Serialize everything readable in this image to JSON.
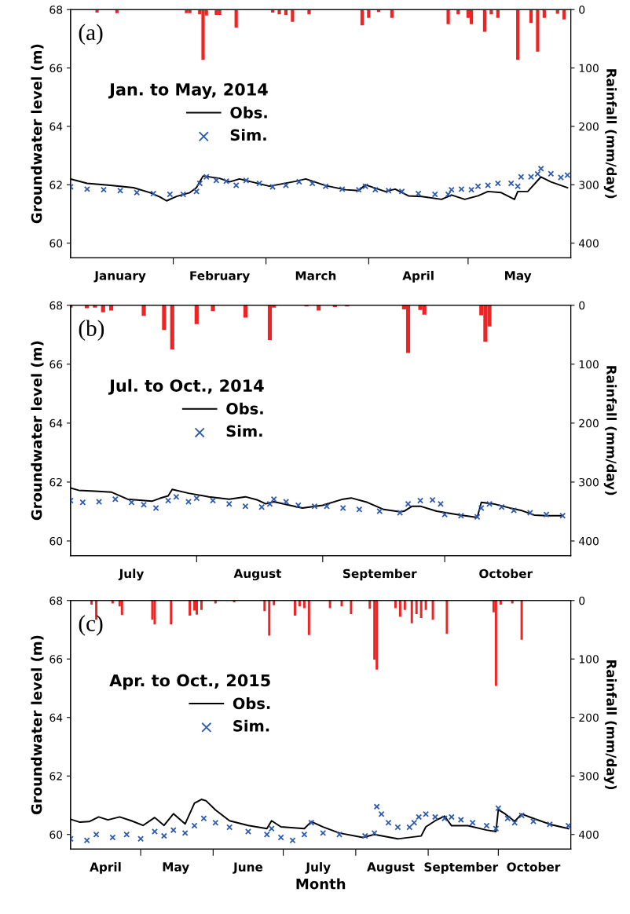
{
  "chart_data": [
    {
      "type": "line",
      "ylabel": "Groundwater level (m)",
      "y2label": "Rainfall (mm/day)",
      "legend_title": "Jan. to May, 2014",
      "legend": "top left",
      "annotations": [
        "(a)"
      ],
      "xlim": [
        "2014-01-01",
        "2014-06-01"
      ],
      "xticks": [
        {
          "value": "2014-02-01",
          "label": null
        },
        {
          "value": "2014-03-01",
          "label": null
        },
        {
          "value": "2014-04-01",
          "label": null
        },
        {
          "value": "2014-05-01",
          "label": null
        },
        {
          "value": "2014-01-16",
          "label": "January"
        },
        {
          "value": "2014-02-15",
          "label": "February"
        },
        {
          "value": "2014-03-16",
          "label": "March"
        },
        {
          "value": "2014-04-16",
          "label": "April"
        },
        {
          "value": "2014-05-16",
          "label": "May"
        }
      ],
      "ylim": [
        59.5,
        68
      ],
      "yticks": [
        60,
        62,
        64,
        66,
        68
      ],
      "y2lim": [
        425,
        0
      ],
      "y2ticks": [
        0,
        100,
        200,
        300,
        400
      ],
      "series": [
        {
          "type": "bar",
          "axis": "y2",
          "color": "#ee2424",
          "x": [
            "2014-01-09",
            "2014-01-15",
            "2014-02-05",
            "2014-02-06",
            "2014-02-09",
            "2014-02-10",
            "2014-02-11",
            "2014-02-14",
            "2014-02-15",
            "2014-02-20",
            "2014-03-03",
            "2014-03-05",
            "2014-03-07",
            "2014-03-09",
            "2014-03-14",
            "2014-03-30",
            "2014-04-01",
            "2014-04-04",
            "2014-04-08",
            "2014-04-25",
            "2014-04-28",
            "2014-05-01",
            "2014-05-02",
            "2014-05-06",
            "2014-05-08",
            "2014-05-10",
            "2014-05-16",
            "2014-05-20",
            "2014-05-22",
            "2014-05-24",
            "2014-05-28",
            "2014-05-30"
          ],
          "values": [
            5,
            6,
            6,
            6,
            8,
            86,
            10,
            9,
            9,
            31,
            5,
            8,
            9,
            21,
            8,
            27,
            14,
            4,
            14,
            25,
            8,
            14,
            25,
            38,
            8,
            14,
            86,
            23,
            72,
            14,
            7,
            17
          ]
        },
        {
          "name": "Obs.",
          "color": "#000000",
          "marker": "none",
          "line_style": "solid",
          "x": [
            "2014-01-01",
            "2014-01-06",
            "2014-01-13",
            "2014-01-20",
            "2014-01-25",
            "2014-01-28",
            "2014-01-30",
            "2014-02-02",
            "2014-02-06",
            "2014-02-08",
            "2014-02-10",
            "2014-02-15",
            "2014-02-18",
            "2014-02-21",
            "2014-03-02",
            "2014-03-10",
            "2014-03-13",
            "2014-03-19",
            "2014-03-25",
            "2014-03-29",
            "2014-03-31",
            "2014-04-06",
            "2014-04-09",
            "2014-04-13",
            "2014-04-17",
            "2014-04-23",
            "2014-04-26",
            "2014-04-30",
            "2014-05-04",
            "2014-05-07",
            "2014-05-11",
            "2014-05-15",
            "2014-05-16",
            "2014-05-19",
            "2014-05-23",
            "2014-05-26",
            "2014-05-31"
          ],
          "values": [
            62.2,
            62.05,
            61.98,
            61.9,
            61.73,
            61.58,
            61.45,
            61.6,
            61.73,
            61.9,
            62.3,
            62.22,
            62.1,
            62.2,
            61.95,
            62.12,
            62.2,
            61.97,
            61.83,
            61.8,
            62.0,
            61.77,
            61.85,
            61.62,
            61.6,
            61.5,
            61.65,
            61.5,
            61.62,
            61.77,
            61.73,
            61.5,
            61.77,
            61.77,
            62.27,
            62.1,
            61.9
          ]
        },
        {
          "type": "scatter",
          "name": "Sim.",
          "color": "#2e5bb0",
          "marker": "cross",
          "x": [
            "2014-01-01",
            "2014-01-06",
            "2014-01-11",
            "2014-01-16",
            "2014-01-21",
            "2014-01-26",
            "2014-01-31",
            "2014-02-04",
            "2014-02-08",
            "2014-02-09",
            "2014-02-11",
            "2014-02-14",
            "2014-02-17",
            "2014-02-20",
            "2014-02-23",
            "2014-02-27",
            "2014-03-03",
            "2014-03-07",
            "2014-03-11",
            "2014-03-15",
            "2014-03-19",
            "2014-03-24",
            "2014-03-29",
            "2014-03-31",
            "2014-04-03",
            "2014-04-07",
            "2014-04-11",
            "2014-04-16",
            "2014-04-21",
            "2014-04-25",
            "2014-04-26",
            "2014-04-29",
            "2014-05-02",
            "2014-05-04",
            "2014-05-07",
            "2014-05-10",
            "2014-05-14",
            "2014-05-16",
            "2014-05-17",
            "2014-05-20",
            "2014-05-22",
            "2014-05-23",
            "2014-05-26",
            "2014-05-29",
            "2014-05-31"
          ],
          "values": [
            61.93,
            61.85,
            61.83,
            61.8,
            61.73,
            61.7,
            61.67,
            61.67,
            61.77,
            62.05,
            62.27,
            62.15,
            62.12,
            61.98,
            62.15,
            62.05,
            61.93,
            61.98,
            62.1,
            62.05,
            61.95,
            61.85,
            61.83,
            61.95,
            61.83,
            61.8,
            61.77,
            61.7,
            61.67,
            61.67,
            61.83,
            61.85,
            61.83,
            61.95,
            61.98,
            62.05,
            62.05,
            61.95,
            62.27,
            62.27,
            62.37,
            62.55,
            62.38,
            62.25,
            62.33
          ]
        }
      ]
    },
    {
      "type": "line",
      "ylabel": "Groundwater level (m)",
      "y2label": "Rainfall (mm/day)",
      "legend_title": "Jul. to Oct., 2014",
      "legend": "top left",
      "annotations": [
        "(b)"
      ],
      "xlim": [
        "2014-07-01",
        "2014-11-01"
      ],
      "xticks": [
        {
          "value": "2014-08-01",
          "label": null
        },
        {
          "value": "2014-09-01",
          "label": null
        },
        {
          "value": "2014-10-01",
          "label": null
        },
        {
          "value": "2014-07-16",
          "label": "July"
        },
        {
          "value": "2014-08-16",
          "label": "August"
        },
        {
          "value": "2014-09-15",
          "label": "September"
        },
        {
          "value": "2014-10-16",
          "label": "October"
        }
      ],
      "ylim": [
        59.5,
        68
      ],
      "yticks": [
        60,
        62,
        64,
        66,
        68
      ],
      "y2lim": [
        425,
        0
      ],
      "y2ticks": [
        0,
        100,
        200,
        300,
        400
      ],
      "series": [
        {
          "type": "bar",
          "axis": "y2",
          "color": "#ee2424",
          "x": [
            "2014-07-01",
            "2014-07-05",
            "2014-07-07",
            "2014-07-09",
            "2014-07-11",
            "2014-07-19",
            "2014-07-24",
            "2014-07-26",
            "2014-08-01",
            "2014-08-05",
            "2014-08-13",
            "2014-08-19",
            "2014-08-20",
            "2014-08-28",
            "2014-08-31",
            "2014-09-04",
            "2014-09-07",
            "2014-09-21",
            "2014-09-22",
            "2014-09-25",
            "2014-09-26",
            "2014-10-10",
            "2014-10-11",
            "2014-10-12"
          ],
          "values": [
            4,
            5,
            4,
            12,
            9,
            18,
            42,
            75,
            32,
            10,
            21,
            59,
            4,
            2,
            9,
            3,
            2,
            7,
            81,
            8,
            16,
            17,
            62,
            36
          ]
        },
        {
          "name": "Obs.",
          "color": "#000000",
          "marker": "none",
          "line_style": "solid",
          "x": [
            "2014-07-01",
            "2014-07-03",
            "2014-07-07",
            "2014-07-11",
            "2014-07-15",
            "2014-07-21",
            "2014-07-23",
            "2014-07-25",
            "2014-07-26",
            "2014-07-30",
            "2014-08-04",
            "2014-08-09",
            "2014-08-13",
            "2014-08-16",
            "2014-08-18",
            "2014-08-20",
            "2014-08-25",
            "2014-08-27",
            "2014-09-01",
            "2014-09-06",
            "2014-09-08",
            "2014-09-12",
            "2014-09-16",
            "2014-09-20",
            "2014-09-21",
            "2014-09-23",
            "2014-09-25",
            "2014-09-29",
            "2014-10-04",
            "2014-10-09",
            "2014-10-10",
            "2014-10-13",
            "2014-10-17",
            "2014-10-20",
            "2014-10-23",
            "2014-10-26",
            "2014-10-30"
          ],
          "values": [
            61.8,
            61.72,
            61.69,
            61.66,
            61.42,
            61.35,
            61.45,
            61.53,
            61.75,
            61.62,
            61.5,
            61.42,
            61.5,
            61.39,
            61.26,
            61.33,
            61.18,
            61.12,
            61.21,
            61.42,
            61.46,
            61.31,
            61.07,
            60.99,
            61.01,
            61.18,
            61.18,
            61.01,
            60.9,
            60.8,
            61.31,
            61.26,
            61.12,
            61.03,
            60.88,
            60.86,
            60.86
          ]
        },
        {
          "type": "scatter",
          "name": "Sim.",
          "color": "#2e5bb0",
          "marker": "cross",
          "x": [
            "2014-07-01",
            "2014-07-04",
            "2014-07-08",
            "2014-07-12",
            "2014-07-16",
            "2014-07-19",
            "2014-07-22",
            "2014-07-25",
            "2014-07-27",
            "2014-07-30",
            "2014-08-01",
            "2014-08-05",
            "2014-08-09",
            "2014-08-13",
            "2014-08-17",
            "2014-08-19",
            "2014-08-20",
            "2014-08-23",
            "2014-08-26",
            "2014-08-30",
            "2014-09-02",
            "2014-09-06",
            "2014-09-10",
            "2014-09-15",
            "2014-09-20",
            "2014-09-22",
            "2014-09-25",
            "2014-09-28",
            "2014-09-30",
            "2014-10-01",
            "2014-10-05",
            "2014-10-09",
            "2014-10-10",
            "2014-10-12",
            "2014-10-15",
            "2014-10-18",
            "2014-10-22",
            "2014-10-26",
            "2014-10-30"
          ],
          "values": [
            61.37,
            61.31,
            61.33,
            61.42,
            61.31,
            61.23,
            61.12,
            61.37,
            61.5,
            61.33,
            61.45,
            61.37,
            61.26,
            61.18,
            61.15,
            61.26,
            61.42,
            61.33,
            61.21,
            61.18,
            61.18,
            61.12,
            61.07,
            61.01,
            60.96,
            61.26,
            61.37,
            61.39,
            61.26,
            60.9,
            60.86,
            60.82,
            61.12,
            61.26,
            61.15,
            61.04,
            60.96,
            60.9,
            60.86
          ]
        }
      ]
    },
    {
      "type": "line",
      "xlabel": "Month",
      "ylabel": "Groundwater level (m)",
      "y2label": "Rainfall (mm/day)",
      "legend_title": "Apr. to Oct., 2015",
      "legend": "top left",
      "annotations": [
        "(c)"
      ],
      "xlim": [
        "2015-04-01",
        "2015-11-01"
      ],
      "xticks": [
        {
          "value": "2015-05-01",
          "label": null
        },
        {
          "value": "2015-06-01",
          "label": null
        },
        {
          "value": "2015-07-01",
          "label": null
        },
        {
          "value": "2015-08-01",
          "label": null
        },
        {
          "value": "2015-09-01",
          "label": null
        },
        {
          "value": "2015-10-01",
          "label": null
        },
        {
          "value": "2015-04-16",
          "label": "April"
        },
        {
          "value": "2015-05-16",
          "label": "May"
        },
        {
          "value": "2015-06-16",
          "label": "June"
        },
        {
          "value": "2015-07-16",
          "label": "July"
        },
        {
          "value": "2015-08-16",
          "label": "August"
        },
        {
          "value": "2015-09-15",
          "label": "September"
        },
        {
          "value": "2015-10-16",
          "label": "October"
        }
      ],
      "ylim": [
        59.5,
        68
      ],
      "yticks": [
        60,
        62,
        64,
        66,
        68
      ],
      "y2lim": [
        425,
        0
      ],
      "y2ticks": [
        0,
        100,
        200,
        300,
        400
      ],
      "series": [
        {
          "type": "bar",
          "axis": "y2",
          "color": "#ee2424",
          "x": [
            "2015-04-10",
            "2015-04-12",
            "2015-04-19",
            "2015-04-22",
            "2015-04-23",
            "2015-05-06",
            "2015-05-07",
            "2015-05-14",
            "2015-05-22",
            "2015-05-24",
            "2015-05-25",
            "2015-05-27",
            "2015-06-02",
            "2015-06-10",
            "2015-06-23",
            "2015-06-25",
            "2015-06-27",
            "2015-07-06",
            "2015-07-08",
            "2015-07-10",
            "2015-07-12",
            "2015-07-21",
            "2015-07-26",
            "2015-07-30",
            "2015-08-07",
            "2015-08-09",
            "2015-08-10",
            "2015-08-18",
            "2015-08-20",
            "2015-08-22",
            "2015-08-25",
            "2015-08-27",
            "2015-08-29",
            "2015-08-31",
            "2015-09-03",
            "2015-09-09",
            "2015-09-29",
            "2015-09-30",
            "2015-10-02",
            "2015-10-07",
            "2015-10-11"
          ],
          "values": [
            7,
            33,
            5,
            10,
            25,
            33,
            41,
            41,
            26,
            17,
            24,
            16,
            5,
            3,
            18,
            60,
            8,
            26,
            10,
            13,
            59,
            13,
            10,
            23,
            14,
            101,
            118,
            13,
            28,
            16,
            39,
            23,
            30,
            16,
            33,
            57,
            20,
            146,
            7,
            5,
            67
          ]
        },
        {
          "name": "Obs.",
          "color": "#000000",
          "marker": "none",
          "line_style": "solid",
          "x": [
            "2015-04-01",
            "2015-04-05",
            "2015-04-09",
            "2015-04-13",
            "2015-04-17",
            "2015-04-22",
            "2015-04-27",
            "2015-05-02",
            "2015-05-07",
            "2015-05-11",
            "2015-05-15",
            "2015-05-20",
            "2015-05-24",
            "2015-05-27",
            "2015-05-29",
            "2015-06-02",
            "2015-06-08",
            "2015-06-16",
            "2015-06-24",
            "2015-06-26",
            "2015-06-30",
            "2015-07-10",
            "2015-07-13",
            "2015-07-18",
            "2015-07-25",
            "2015-08-04",
            "2015-08-09",
            "2015-08-19",
            "2015-08-29",
            "2015-08-31",
            "2015-09-04",
            "2015-09-08",
            "2015-09-11",
            "2015-09-18",
            "2015-09-26",
            "2015-09-30",
            "2015-10-01",
            "2015-10-04",
            "2015-10-08",
            "2015-10-11",
            "2015-10-16",
            "2015-10-23",
            "2015-10-31"
          ],
          "values": [
            60.52,
            60.42,
            60.44,
            60.6,
            60.5,
            60.6,
            60.47,
            60.31,
            60.58,
            60.31,
            60.71,
            60.36,
            61.07,
            61.2,
            61.15,
            60.84,
            60.47,
            60.31,
            60.2,
            60.47,
            60.26,
            60.2,
            60.44,
            60.26,
            60.05,
            59.9,
            60.0,
            59.85,
            59.95,
            60.26,
            60.47,
            60.63,
            60.3,
            60.3,
            60.15,
            60.1,
            60.85,
            60.7,
            60.45,
            60.7,
            60.55,
            60.35,
            60.2
          ]
        },
        {
          "type": "scatter",
          "name": "Sim.",
          "color": "#2e5bb0",
          "marker": "cross",
          "x": [
            "2015-04-01",
            "2015-04-08",
            "2015-04-12",
            "2015-04-19",
            "2015-04-25",
            "2015-05-01",
            "2015-05-07",
            "2015-05-11",
            "2015-05-15",
            "2015-05-20",
            "2015-05-24",
            "2015-05-28",
            "2015-06-02",
            "2015-06-08",
            "2015-06-16",
            "2015-06-24",
            "2015-06-26",
            "2015-06-30",
            "2015-07-05",
            "2015-07-10",
            "2015-07-13",
            "2015-07-18",
            "2015-07-25",
            "2015-08-05",
            "2015-08-09",
            "2015-08-10",
            "2015-08-12",
            "2015-08-15",
            "2015-08-19",
            "2015-08-24",
            "2015-08-26",
            "2015-08-28",
            "2015-08-31",
            "2015-09-04",
            "2015-09-08",
            "2015-09-11",
            "2015-09-15",
            "2015-09-20",
            "2015-09-26",
            "2015-09-30",
            "2015-10-01",
            "2015-10-05",
            "2015-10-08",
            "2015-10-11",
            "2015-10-16",
            "2015-10-23",
            "2015-10-31"
          ],
          "values": [
            59.85,
            59.8,
            60.0,
            59.9,
            60.0,
            59.85,
            60.1,
            59.95,
            60.15,
            60.05,
            60.3,
            60.55,
            60.4,
            60.25,
            60.1,
            60.0,
            60.2,
            59.9,
            59.8,
            60.0,
            60.4,
            60.05,
            60.0,
            59.95,
            60.05,
            60.95,
            60.7,
            60.4,
            60.25,
            60.25,
            60.4,
            60.6,
            60.7,
            60.6,
            60.55,
            60.6,
            60.5,
            60.4,
            60.3,
            60.2,
            60.9,
            60.55,
            60.4,
            60.65,
            60.45,
            60.35,
            60.3
          ]
        }
      ]
    }
  ]
}
